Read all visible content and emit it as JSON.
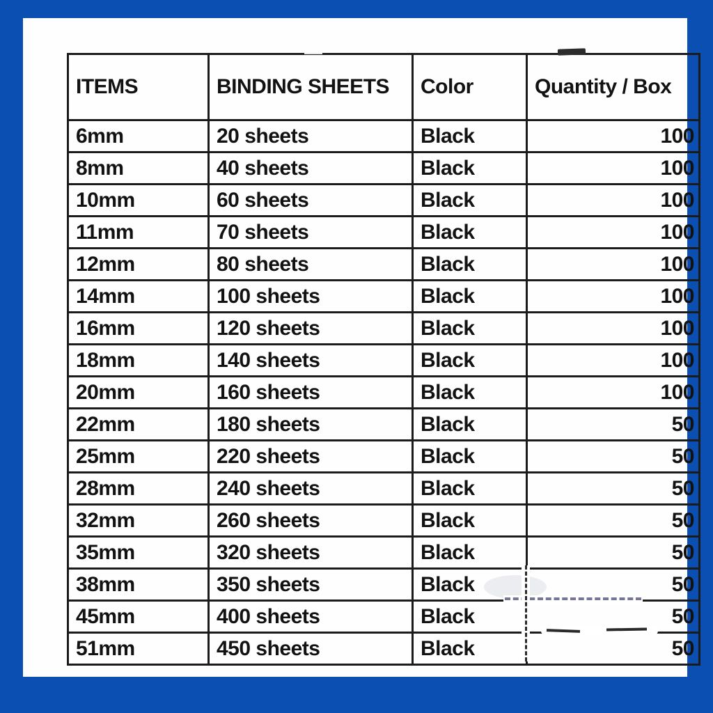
{
  "frame": {
    "border_color": "#0b4fb2",
    "panel_color": "#fefefe",
    "line_color": "#1b1b1b",
    "text_color": "#121212"
  },
  "table": {
    "headers": [
      "ITEMS",
      "BINDING SHEETS",
      "Color",
      "Quantity / Box"
    ],
    "rows": [
      {
        "item": "6mm",
        "sheets": "20 sheets",
        "color": "Black",
        "qty": "100"
      },
      {
        "item": "8mm",
        "sheets": "40 sheets",
        "color": "Black",
        "qty": "100"
      },
      {
        "item": "10mm",
        "sheets": "60 sheets",
        "color": "Black",
        "qty": "100"
      },
      {
        "item": "11mm",
        "sheets": "70 sheets",
        "color": "Black",
        "qty": "100"
      },
      {
        "item": "12mm",
        "sheets": "80 sheets",
        "color": "Black",
        "qty": "100"
      },
      {
        "item": "14mm",
        "sheets": "100 sheets",
        "color": "Black",
        "qty": "100"
      },
      {
        "item": "16mm",
        "sheets": "120 sheets",
        "color": "Black",
        "qty": "100"
      },
      {
        "item": "18mm",
        "sheets": "140 sheets",
        "color": "Black",
        "qty": "100"
      },
      {
        "item": "20mm",
        "sheets": "160 sheets",
        "color": "Black",
        "qty": "100"
      },
      {
        "item": "22mm",
        "sheets": "180 sheets",
        "color": "Black",
        "qty": "50"
      },
      {
        "item": "25mm",
        "sheets": "220 sheets",
        "color": "Black",
        "qty": "50"
      },
      {
        "item": "28mm",
        "sheets": "240 sheets",
        "color": "Black",
        "qty": "50"
      },
      {
        "item": "32mm",
        "sheets": "260 sheets",
        "color": "Black",
        "qty": "50"
      },
      {
        "item": "35mm",
        "sheets": "320 sheets",
        "color": "Black",
        "qty": "50"
      },
      {
        "item": "38mm",
        "sheets": "350 sheets",
        "color": "Black",
        "qty": "50"
      },
      {
        "item": "45mm",
        "sheets": "400 sheets",
        "color": "Black",
        "qty": "50"
      },
      {
        "item": "51mm",
        "sheets": "450 sheets",
        "color": "Black",
        "qty": "50"
      }
    ]
  }
}
